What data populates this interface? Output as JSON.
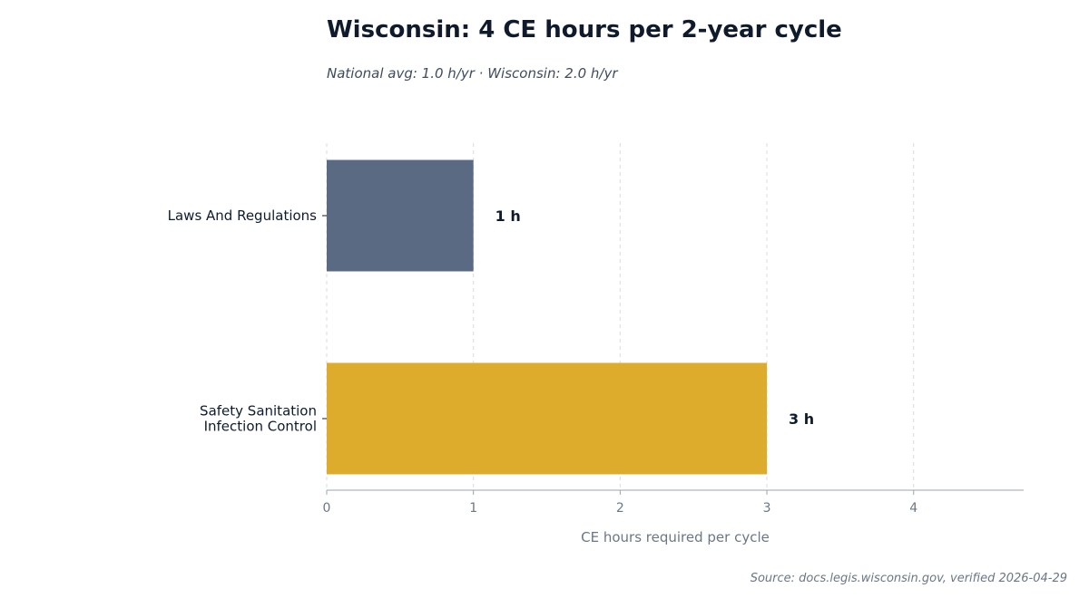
{
  "chart_data": {
    "type": "bar",
    "orientation": "horizontal",
    "title": "Wisconsin: 4 CE hours per 2-year cycle",
    "subtitle": "National avg: 1.0 h/yr · Wisconsin: 2.0 h/yr",
    "categories": [
      [
        "Laws And Regulations"
      ],
      [
        "Safety Sanitation",
        "Infection Control"
      ]
    ],
    "values": [
      1,
      3
    ],
    "data_labels": [
      "1 h",
      "3 h"
    ],
    "colors": [
      "#5b6a83",
      "#deac2c"
    ],
    "xlabel": "CE hours required per cycle",
    "ylabel": "",
    "xlim": [
      0,
      4.75
    ],
    "xticks": [
      0,
      1,
      2,
      3,
      4
    ],
    "grid": "vertical dashed",
    "legend": "none"
  },
  "source": "Source: docs.legis.wisconsin.gov, verified 2026-04-29"
}
